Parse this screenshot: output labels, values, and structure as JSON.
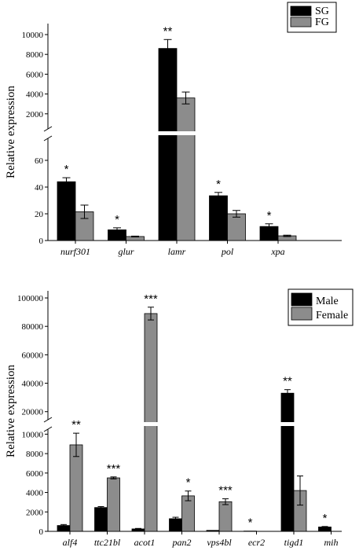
{
  "chart_data": [
    {
      "type": "bar",
      "ylabel": "Relative expression",
      "categories": [
        "nurf301",
        "glur",
        "lamr",
        "pol",
        "xpa"
      ],
      "series": [
        {
          "name": "SG",
          "color": "#000000",
          "values": [
            44,
            8,
            8600,
            33.5,
            10.5
          ],
          "errors": [
            3,
            1.5,
            900,
            2.5,
            2
          ]
        },
        {
          "name": "FG",
          "color": "#8c8c8c",
          "values": [
            21.5,
            3,
            3600,
            20,
            3.5
          ],
          "errors": [
            5,
            0.3,
            600,
            2.5,
            0.5
          ]
        }
      ],
      "significance": [
        "*",
        "*",
        "**",
        "*",
        "*"
      ],
      "broken_axis": {
        "lower_range": [
          0,
          80
        ],
        "upper_range": [
          0,
          10000
        ],
        "lower_ticks": [
          0,
          20,
          40,
          60
        ],
        "upper_ticks": [
          2000,
          4000,
          6000,
          8000,
          10000
        ]
      },
      "legend_position": "top-right"
    },
    {
      "type": "bar",
      "ylabel": "Relative expression",
      "categories": [
        "alf4",
        "ttc21bl",
        "acot1",
        "pan2",
        "vps4bl",
        "ecr2",
        "tigd1",
        "mih"
      ],
      "series": [
        {
          "name": "Male",
          "color": "#000000",
          "values": [
            600,
            2450,
            250,
            1300,
            100,
            30,
            33000,
            450
          ],
          "errors": [
            100,
            100,
            50,
            150,
            0,
            0,
            2500,
            50
          ]
        },
        {
          "name": "Female",
          "color": "#8c8c8c",
          "values": [
            8900,
            5500,
            89000,
            3650,
            3050,
            0,
            4200,
            0
          ],
          "errors": [
            1200,
            100,
            4500,
            500,
            300,
            0,
            1500,
            0
          ]
        }
      ],
      "significance": [
        "**",
        "***",
        "***",
        "*",
        "***",
        "*",
        "**",
        "*"
      ],
      "broken_axis": {
        "lower_range": [
          0,
          11000
        ],
        "upper_range": [
          11000,
          105000
        ],
        "lower_ticks": [
          0,
          2000,
          4000,
          6000,
          8000,
          10000
        ],
        "upper_ticks": [
          20000,
          40000,
          60000,
          80000,
          100000
        ]
      },
      "legend_position": "top-right"
    }
  ]
}
